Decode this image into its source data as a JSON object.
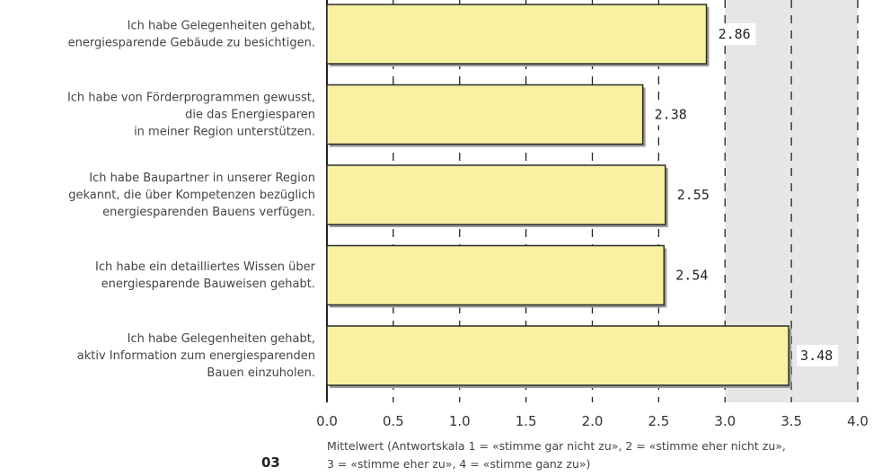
{
  "figure_number": "03",
  "colors": {
    "bar_fill": "#f7f1a1",
    "bar_stroke": "#2b2b2b",
    "plot_band": "#e6e6e6",
    "grid": "#222222"
  },
  "chart_data": {
    "type": "bar",
    "orientation": "horizontal",
    "categories": [
      "Ich habe Gelegenheiten gehabt,\nenergiesparende Gebäude zu besichtigen.",
      "Ich habe von Förderprogrammen gewusst,\ndie das Energiesparen\nin meiner Region unterstützen.",
      "Ich habe Baupartner in unserer Region\ngekannt, die über Kompetenzen bezüglich\nenergiesparenden Bauens verfügen.",
      "Ich habe ein detailliertes Wissen über\nenergiesparende Bauweisen gehabt.",
      "Ich habe Gelegenheiten gehabt,\naktiv Information zum energiesparenden\nBauen einzuholen."
    ],
    "values": [
      2.86,
      2.38,
      2.55,
      2.54,
      3.48
    ],
    "value_labels": [
      "2.86",
      "2.38",
      "2.55",
      "2.54",
      "3.48"
    ],
    "xlim": [
      0,
      4
    ],
    "xticks": [
      0,
      0.5,
      1,
      1.5,
      2,
      2.5,
      3,
      3.5,
      4
    ],
    "xtick_labels": [
      "0.0",
      "0.5",
      "1.0",
      "1.5",
      "2.0",
      "2.5",
      "3.0",
      "3.5",
      "4.0"
    ],
    "xlabel": "Mittelwert (Antwortskala 1 = «stimme gar nicht zu», 2 = «stimme eher nicht zu»,\n3 = «stimme eher zu», 4 = «stimme ganz zu»)",
    "grid": true,
    "grid_style": "dashed",
    "legend": "none"
  }
}
